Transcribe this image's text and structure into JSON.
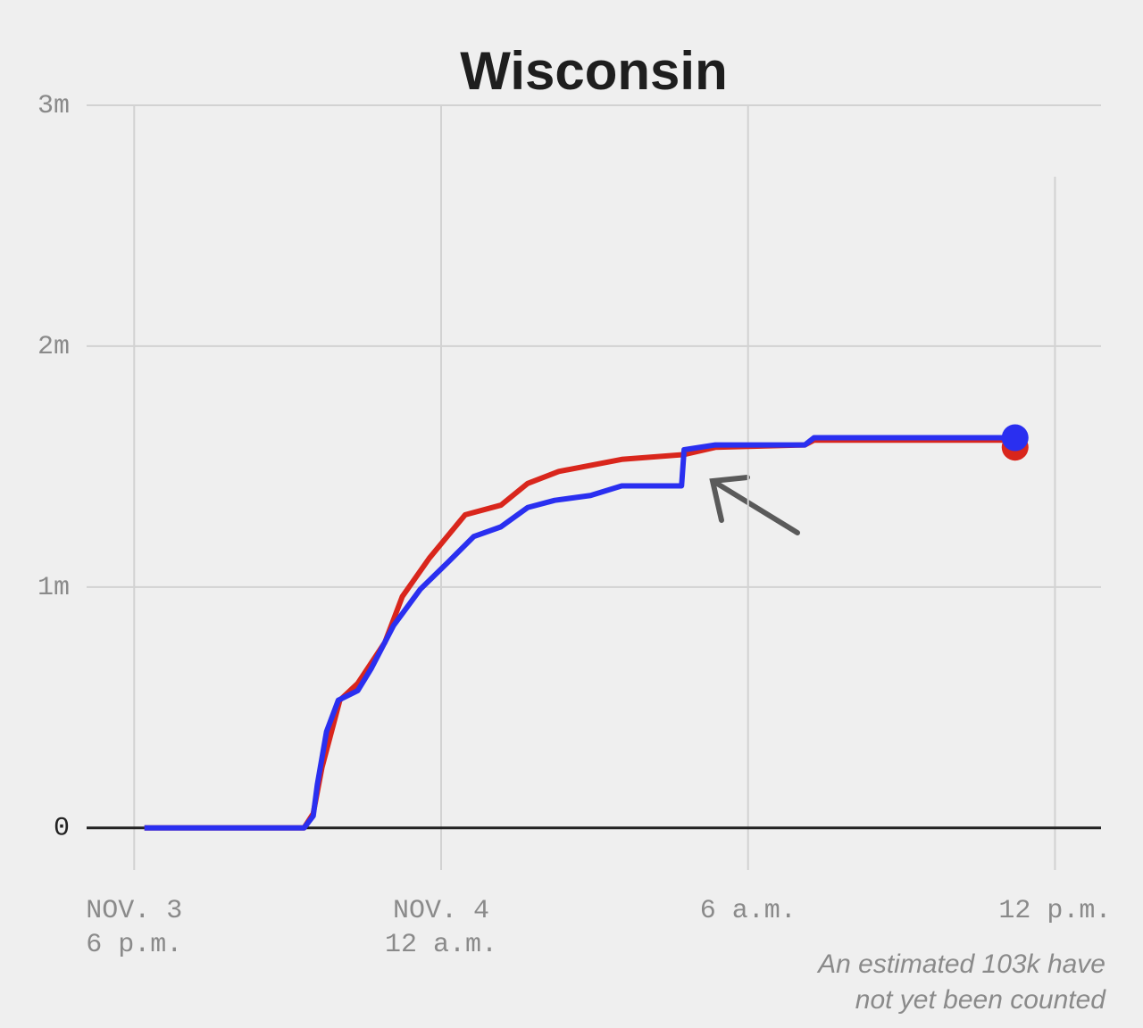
{
  "chart_data": {
    "type": "line",
    "title": "Wisconsin",
    "annotation": [
      "An estimated 103k have",
      "not yet been counted"
    ],
    "series": [
      {
        "color": "#d9261c",
        "x": [
          0.2,
          3.32,
          3.5,
          3.67,
          4.02,
          4.37,
          4.9,
          5.24,
          5.77,
          6.47,
          7.17,
          7.69,
          8.3,
          9.53,
          10.75,
          11.36,
          13.11,
          13.29,
          17.22
        ],
        "values": [
          0,
          0,
          60000,
          250000,
          530000,
          600000,
          770000,
          960000,
          1120000,
          1300000,
          1340000,
          1430000,
          1480000,
          1530000,
          1550000,
          1580000,
          1590000,
          1610000,
          1610000
        ]
      },
      {
        "color": "#2a2ff0",
        "x": [
          0.2,
          3.32,
          3.5,
          3.58,
          3.76,
          3.99,
          4.37,
          4.63,
          5.07,
          5.59,
          6.12,
          6.64,
          7.17,
          7.69,
          8.22,
          8.92,
          9.53,
          10.7,
          10.75,
          11.36,
          13.11,
          13.29,
          17.22
        ],
        "values": [
          0,
          0,
          50000,
          180000,
          400000,
          530000,
          570000,
          660000,
          840000,
          990000,
          1100000,
          1210000,
          1250000,
          1330000,
          1360000,
          1380000,
          1420000,
          1420000,
          1570000,
          1590000,
          1590000,
          1620000,
          1620000
        ]
      }
    ],
    "xlim": [
      -0.93,
      18.9
    ],
    "xticks": [
      {
        "value": 0,
        "label": [
          "NOV. 3",
          "6 p.m."
        ]
      },
      {
        "value": 6,
        "label": [
          "NOV. 4",
          "12 a.m."
        ]
      },
      {
        "value": 12,
        "label": [
          "6 a.m."
        ]
      },
      {
        "value": 18,
        "label": [
          "12 p.m."
        ]
      }
    ],
    "ylim": [
      -175000,
      3000000
    ],
    "yticks": [
      {
        "value": 0,
        "label": "0"
      },
      {
        "value": 1000000,
        "label": "1m"
      },
      {
        "value": 2000000,
        "label": "2m"
      },
      {
        "value": 3000000,
        "label": "3m"
      }
    ],
    "grid": true
  }
}
